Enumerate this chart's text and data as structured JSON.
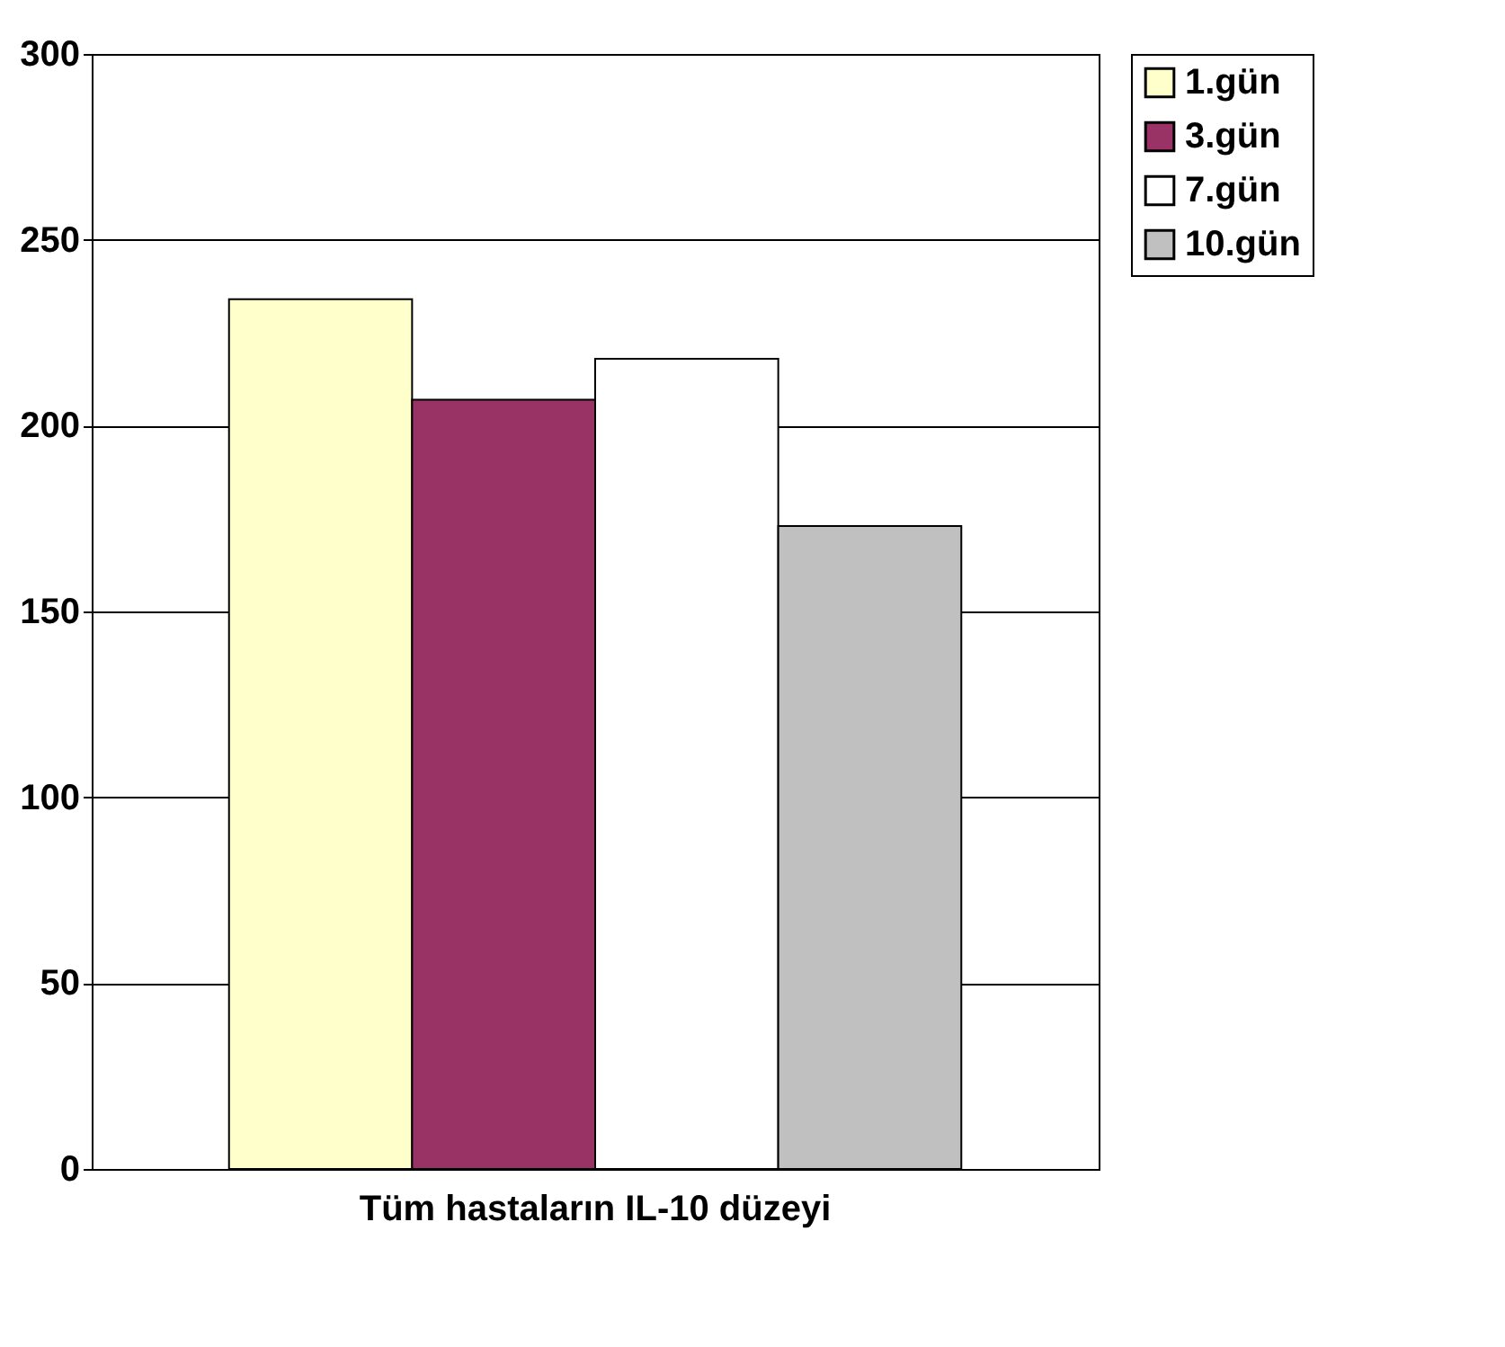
{
  "chart_data": {
    "type": "bar",
    "categories": [
      "Tüm hastaların IL-10 düzeyi"
    ],
    "series": [
      {
        "name": "1.gün",
        "color": "#ffffcc",
        "values": [
          234
        ]
      },
      {
        "name": "3.gün",
        "color": "#993366",
        "values": [
          207
        ]
      },
      {
        "name": "7.gün",
        "color": "#ffffff",
        "values": [
          218
        ]
      },
      {
        "name": "10.gün",
        "color": "#c0c0c0",
        "values": [
          173
        ]
      }
    ],
    "ylim": [
      0,
      300
    ],
    "yticks": [
      0,
      50,
      100,
      150,
      200,
      250,
      300
    ],
    "grid": "y",
    "legend": "right"
  }
}
